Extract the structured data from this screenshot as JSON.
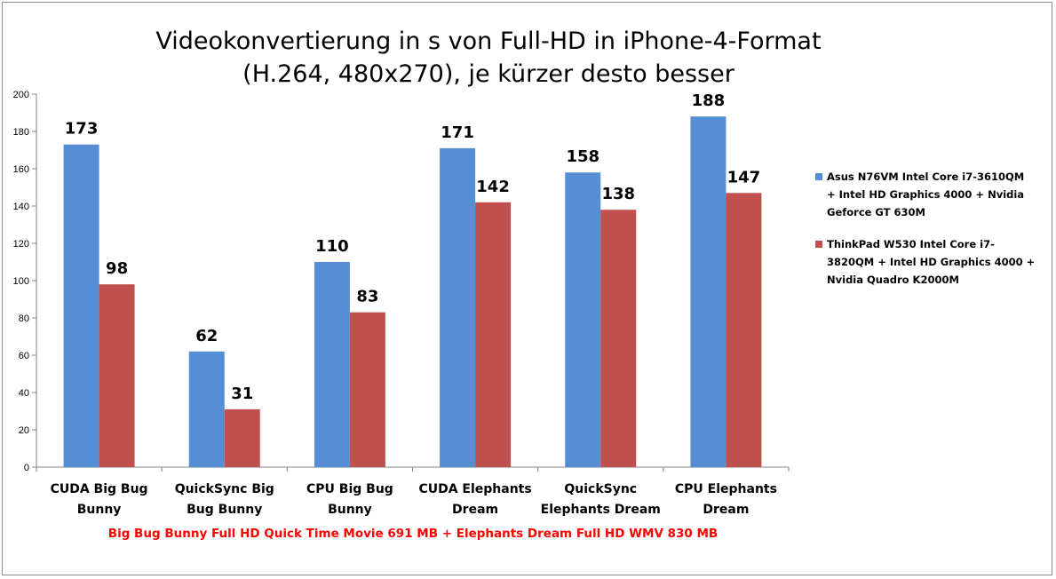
{
  "chart_data": {
    "type": "bar",
    "title": "Videokonvertierung in s von Full-HD in iPhone-4-Format (H.264, 480x270), je kürzer desto besser",
    "title_lines": [
      "Videokonvertierung in s von Full-HD in iPhone-4-Format",
      "(H.264, 480x270), je kürzer desto besser"
    ],
    "xlabel": "Big Bug Bunny Full HD Quick Time Movie 691 MB + Elephants Dream Full HD WMV 830 MB",
    "ylabel": "",
    "ylim": [
      0,
      200
    ],
    "y_ticks": [
      0,
      20,
      40,
      60,
      80,
      100,
      120,
      140,
      160,
      180,
      200
    ],
    "grid": false,
    "legend_position": "right",
    "categories": [
      [
        "CUDA Big Bug",
        "Bunny"
      ],
      [
        "QuickSync Big",
        "Bug Bunny"
      ],
      [
        "CPU Big Bug",
        "Bunny"
      ],
      [
        "CUDA Elephants",
        "Dream"
      ],
      [
        "QuickSync",
        "Elephants Dream"
      ],
      [
        "CPU Elephants",
        "Dream"
      ]
    ],
    "series": [
      {
        "name": "Asus N76VM Intel Core i7-3610QM + Intel HD Graphics 4000 + Nvidia Geforce GT 630M",
        "legend_lines": [
          "Asus N76VM Intel Core i7-3610QM",
          "+ Intel HD Graphics 4000 + Nvidia",
          "Geforce GT 630M"
        ],
        "color": "#558ed5",
        "values": [
          173,
          62,
          110,
          171,
          158,
          188
        ]
      },
      {
        "name": "ThinkPad W530 Intel Core i7-3820QM + Intel HD Graphics 4000 + Nvidia Quadro K2000M",
        "legend_lines": [
          "ThinkPad W530 Intel Core i7-",
          "3820QM + Intel HD Graphics 4000 +",
          "Nvidia Quadro K2000M"
        ],
        "color": "#c0504d",
        "values": [
          98,
          31,
          83,
          142,
          138,
          147
        ]
      }
    ]
  }
}
